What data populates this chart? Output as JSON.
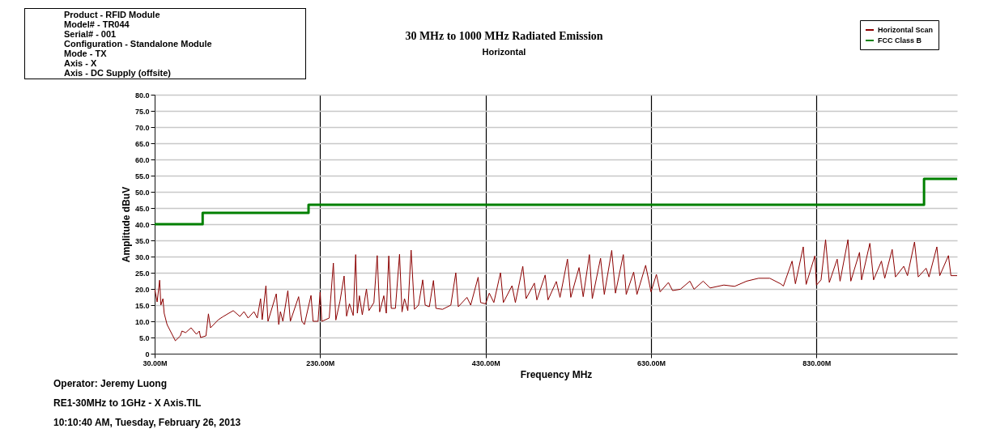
{
  "chart_data": {
    "type": "line",
    "title": "30 MHz to 1000 MHz Radiated Emission",
    "subtitle": "Horizontal",
    "xlabel": "Frequency MHz",
    "ylabel": "Amplitude dBuV",
    "xlim": [
      30,
      1000
    ],
    "xticks": [
      {
        "value": 30,
        "label": "30.00M"
      },
      {
        "value": 230,
        "label": "230.00M"
      },
      {
        "value": 430,
        "label": "430.00M"
      },
      {
        "value": 630,
        "label": "630.00M"
      },
      {
        "value": 830,
        "label": "830.00M"
      }
    ],
    "ylim": [
      0,
      80
    ],
    "yticks": [
      0,
      {
        "value": 5,
        "label": "5.0"
      },
      {
        "value": 10,
        "label": "10.0"
      },
      {
        "value": 15,
        "label": "15.0"
      },
      {
        "value": 20,
        "label": "20.0"
      },
      {
        "value": 25,
        "label": "25.0"
      },
      {
        "value": 30,
        "label": "30.0"
      },
      {
        "value": 35,
        "label": "35.0"
      },
      {
        "value": 40,
        "label": "40.0"
      },
      {
        "value": 45,
        "label": "45.0"
      },
      {
        "value": 50,
        "label": "50.0"
      },
      {
        "value": 55,
        "label": "55.0"
      },
      {
        "value": 60,
        "label": "60.0"
      },
      {
        "value": 65,
        "label": "65.0"
      },
      {
        "value": 70,
        "label": "70.0"
      },
      {
        "value": 75,
        "label": "75.0"
      },
      {
        "value": 80,
        "label": "80.0"
      }
    ],
    "grid": true,
    "legend": "top right",
    "series": [
      {
        "name": "Horizontal Scan",
        "color": "#8b0000",
        "type": "line",
        "x": [
          30,
          33,
          36,
          37.5,
          40,
          41.5,
          45,
          51,
          55,
          61,
          63,
          67.5,
          74,
          80.5,
          84,
          85.5,
          92,
          95,
          97.5,
          107,
          113,
          125,
          133,
          138,
          143,
          150,
          154,
          158,
          160,
          164.5,
          167,
          177,
          180,
          182,
          185,
          191,
          194,
          204,
          208,
          211,
          219,
          221.5,
          227.5,
          230,
          232,
          241,
          246,
          249,
          254,
          259,
          262,
          265.5,
          270,
          273,
          275,
          277.5,
          281,
          286,
          289,
          295,
          299,
          302,
          307,
          310,
          313,
          316,
          321,
          326,
          329,
          332,
          336,
          340,
          344,
          349,
          354,
          357,
          362,
          367,
          370,
          378,
          388,
          394,
          397,
          407.5,
          412,
          421,
          424,
          430,
          434.5,
          440,
          448,
          451.5,
          462,
          466,
          475,
          479,
          489,
          492,
          502,
          505.5,
          515.5,
          520,
          529,
          533,
          543,
          548,
          555.5,
          559,
          569,
          573.5,
          582.5,
          587,
          596.5,
          600,
          609,
          613,
          623.5,
          630,
          636.5,
          641,
          651,
          656,
          665.5,
          677,
          682,
          693,
          701.5,
          718,
          731,
          745.5,
          760,
          773.5,
          786.5,
          790,
          800.5,
          804.5,
          814,
          817.5,
          828,
          830,
          835.5,
          841,
          845.5,
          855,
          858.5,
          868,
          871.5,
          882,
          884.5,
          894.5,
          899,
          908.5,
          912.5,
          921.5,
          925.5,
          935.5,
          940,
          948.5,
          953,
          962.5,
          966,
          975.5,
          979,
          989.5,
          992.5,
          1000
        ],
        "values": [
          20,
          16,
          22.7,
          15,
          17,
          12.5,
          9,
          6,
          4,
          5.5,
          7,
          6.5,
          8,
          6,
          7,
          5,
          5.5,
          12.3,
          8,
          10.5,
          11.5,
          13.3,
          11.5,
          13,
          11,
          13,
          11,
          17,
          10.5,
          21,
          10,
          18.5,
          9,
          13,
          10,
          19.5,
          10,
          17.6,
          10,
          9,
          18,
          10,
          10,
          19,
          10,
          11,
          28,
          10.4,
          16.2,
          24,
          11.6,
          15.4,
          11.8,
          30.6,
          12.5,
          17.9,
          12,
          20,
          13.3,
          15.8,
          30.3,
          12.9,
          17.9,
          12.5,
          30.2,
          14,
          14,
          30.7,
          12.9,
          17,
          13.3,
          32,
          13.7,
          15,
          22.8,
          15,
          14.5,
          22.6,
          14,
          13.7,
          15,
          25,
          14.5,
          17.4,
          15,
          23.6,
          15.8,
          15.4,
          18.7,
          15.8,
          25,
          15.8,
          21,
          15.8,
          27,
          17,
          21.8,
          16.6,
          24.3,
          16.6,
          22.3,
          17.4,
          29.2,
          17.4,
          26.6,
          17.6,
          30.6,
          17,
          29.5,
          18.3,
          31.9,
          18.7,
          30.6,
          18.3,
          25.2,
          18.3,
          27.3,
          19.1,
          24.5,
          19.1,
          22,
          19.5,
          19.9,
          22.4,
          19.9,
          22.4,
          20.3,
          21.2,
          20.8,
          22.4,
          23.3,
          23.3,
          21.6,
          20.9,
          28.6,
          21.6,
          33,
          21.4,
          30.2,
          21.2,
          22.8,
          35.2,
          22,
          29.2,
          22.4,
          35.2,
          22.4,
          31.3,
          22.8,
          34.1,
          22.8,
          28.6,
          23.3,
          32.2,
          23.7,
          27,
          24.1,
          34.5,
          23.7,
          26.4,
          23.7,
          33,
          24.1,
          30.3,
          24.1,
          24.1
        ]
      },
      {
        "name": "FCC Class B",
        "color": "#008000",
        "type": "step",
        "x": [
          30,
          88,
          216,
          960,
          1000
        ],
        "values": [
          40,
          43.5,
          46,
          54,
          54
        ]
      }
    ],
    "annotations": [
      "Product - RFID Module",
      "Model# - TR044",
      "Serial# - 001",
      "Configuration - Standalone Module",
      "Mode - TX",
      "Axis - X",
      "Axis - DC Supply (offsite)",
      "Operator: Jeremy Luong",
      "RE1-30MHz to 1GHz - X Axis.TIL",
      "10:10:40 AM, Tuesday, February 26, 2013"
    ]
  }
}
